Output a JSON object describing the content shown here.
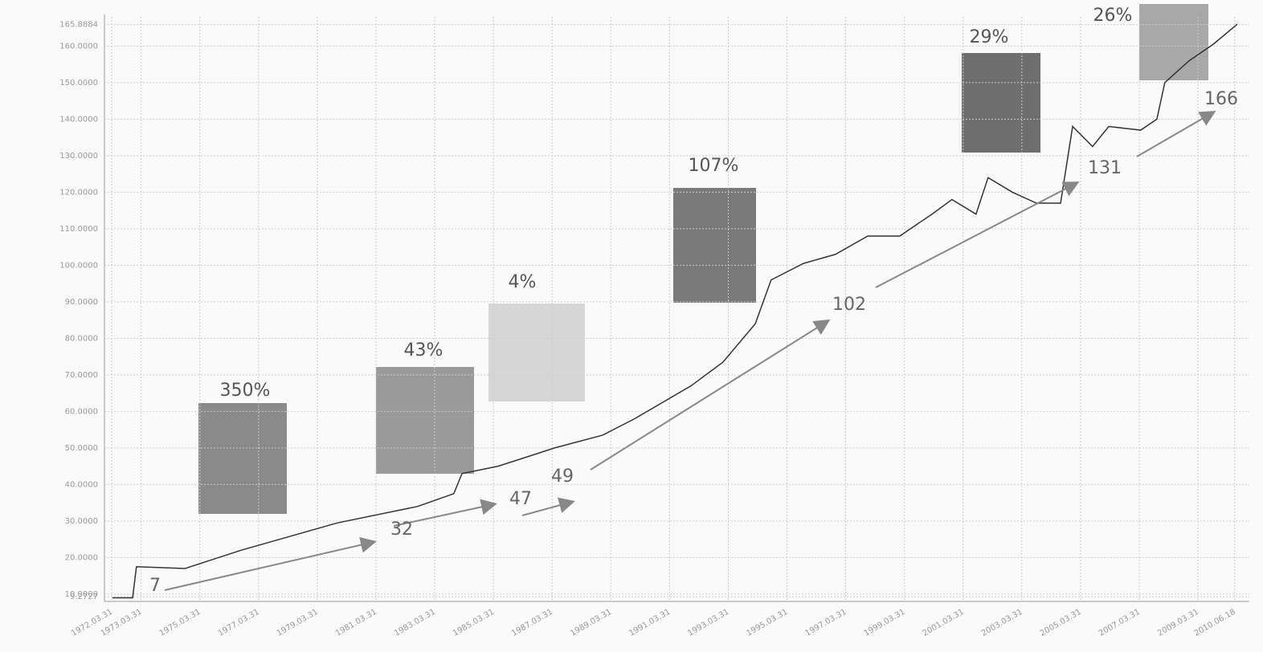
{
  "chart_data": {
    "type": "line",
    "x": [
      1972.27,
      1972.96,
      1973.09,
      1974.74,
      1976.65,
      1979.94,
      1982.67,
      1983.9,
      1984.18,
      1985.41,
      1987.33,
      1988.97,
      1990.06,
      1991.98,
      1993.07,
      1994.17,
      1994.71,
      1995.81,
      1996.9,
      1998.0,
      1999.09,
      2000.19,
      2000.87,
      2001.69,
      2002.1,
      2002.93,
      2003.75,
      2004.57,
      2004.98,
      2005.66,
      2006.21,
      2007.3,
      2007.85,
      2008.12,
      2008.95,
      2009.77,
      2010.59
    ],
    "series": [
      {
        "name": null,
        "color": "#333333",
        "values": [
          9,
          9,
          17.5,
          17,
          22,
          29.5,
          34,
          37.5,
          43,
          45,
          50,
          53.5,
          58,
          67,
          73.5,
          84,
          96,
          100.5,
          103,
          108,
          108,
          114,
          118,
          114,
          124,
          120,
          117,
          117,
          138,
          132.5,
          138,
          137,
          140,
          150,
          156,
          160.5,
          166
        ]
      }
    ],
    "xlim": [
      1972,
      2011
    ],
    "ylim": [
      8,
      168
    ],
    "yticks": [
      {
        "value": 9.2727,
        "label": "9.2727"
      },
      {
        "value": 10,
        "label": "10.0000"
      },
      {
        "value": 20,
        "label": "20.0000"
      },
      {
        "value": 30,
        "label": "30.0000"
      },
      {
        "value": 40,
        "label": "40.0000"
      },
      {
        "value": 50,
        "label": "50.0000"
      },
      {
        "value": 60,
        "label": "60.0000"
      },
      {
        "value": 70,
        "label": "70.0000"
      },
      {
        "value": 80,
        "label": "80.0000"
      },
      {
        "value": 90,
        "label": "90.0000"
      },
      {
        "value": 100,
        "label": "100.0000"
      },
      {
        "value": 110,
        "label": "110.0000"
      },
      {
        "value": 120,
        "label": "120.0000"
      },
      {
        "value": 130,
        "label": "130.0000"
      },
      {
        "value": 140,
        "label": "140.0000"
      },
      {
        "value": 150,
        "label": "150.0000"
      },
      {
        "value": 160,
        "label": "160.0000"
      },
      {
        "value": 165.8884,
        "label": "165.8884"
      }
    ],
    "xticks": [
      {
        "value": 1972.25,
        "label": "1972.03.31"
      },
      {
        "value": 1973.25,
        "label": "1973.03.31"
      },
      {
        "value": 1975.25,
        "label": "1975.03.31"
      },
      {
        "value": 1977.25,
        "label": "1977.03.31"
      },
      {
        "value": 1979.25,
        "label": "1979.03.31"
      },
      {
        "value": 1981.25,
        "label": "1981.03.31"
      },
      {
        "value": 1983.25,
        "label": "1983.03.31"
      },
      {
        "value": 1985.25,
        "label": "1985.03.31"
      },
      {
        "value": 1987.25,
        "label": "1987.03.31"
      },
      {
        "value": 1989.25,
        "label": "1989.03.31"
      },
      {
        "value": 1991.25,
        "label": "1991.03.31"
      },
      {
        "value": 1993.25,
        "label": "1993.03.31"
      },
      {
        "value": 1995.25,
        "label": "1995.03.31"
      },
      {
        "value": 1997.25,
        "label": "1997.03.31"
      },
      {
        "value": 1999.25,
        "label": "1999.03.31"
      },
      {
        "value": 2001.25,
        "label": "2001.03.31"
      },
      {
        "value": 2003.25,
        "label": "2003.03.31"
      },
      {
        "value": 2005.25,
        "label": "2005.03.31"
      },
      {
        "value": 2007.25,
        "label": "2007.03.31"
      },
      {
        "value": 2009.25,
        "label": "2009.03.31"
      },
      {
        "value": 2010.5,
        "label": "2010.06.18"
      }
    ],
    "grid": true,
    "milestones": [
      7,
      32,
      47,
      49,
      102,
      131,
      166
    ],
    "changes": [
      350,
      43,
      4,
      107,
      29,
      26
    ],
    "change_labels": [
      "350%",
      "43%",
      "4%",
      "107%",
      "29%",
      "26%"
    ]
  }
}
